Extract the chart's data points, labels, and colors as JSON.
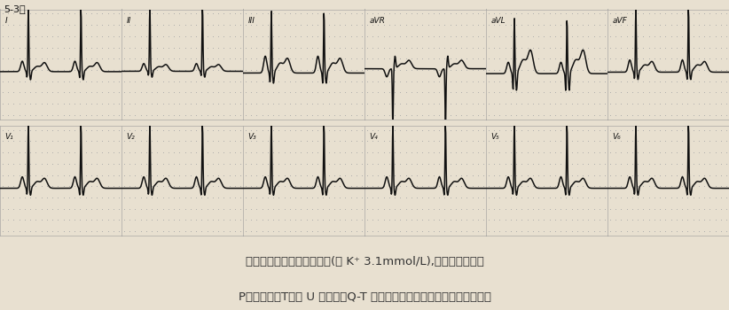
{
  "title_line1": "周期性麻痹、低钾血症患者(血 K⁺ 3.1mmol/L),出现窦性心律伴",
  "title_line2": "P电轴左偏、T波及 U 波改变、Q-T 间期延长、符合低钾血症的心电图改变",
  "corner_label": "5-3）",
  "leads_top": [
    "I",
    "II",
    "III",
    "aVR",
    "aVL",
    "aVF"
  ],
  "leads_bottom": [
    "V₁",
    "V₂",
    "V₃",
    "V₄",
    "V₅",
    "V₆"
  ],
  "bg_color": "#e8e0d0",
  "grid_dot_color": "#aaaaaa",
  "ecg_color": "#111111",
  "title_color": "#333333",
  "panel_edge_color": "#999999"
}
